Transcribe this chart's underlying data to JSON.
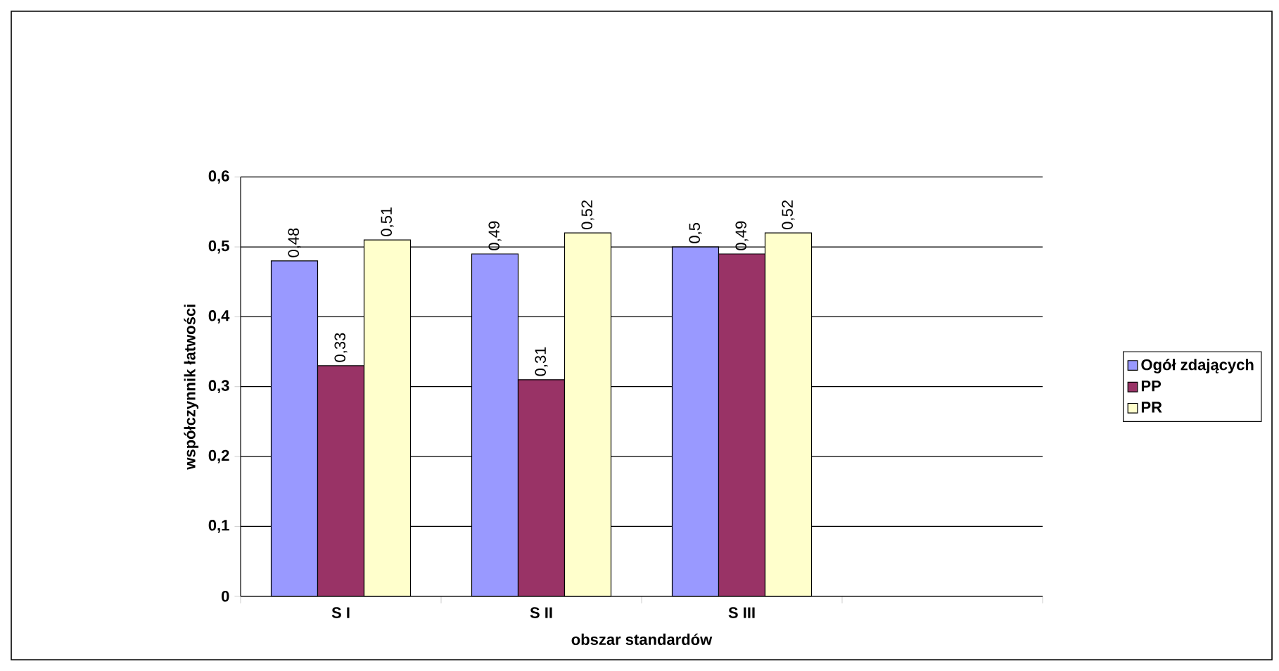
{
  "chart_data": {
    "type": "bar",
    "xlabel": "obszar standardów",
    "ylabel": "współczynnik łatwości",
    "categories": [
      "S I",
      "S II",
      "S III",
      null
    ],
    "series": [
      {
        "name": "Ogół zdających",
        "color": "#9999ff",
        "values": [
          0.48,
          0.49,
          0.5,
          null
        ],
        "value_labels": [
          "0,48",
          "0,49",
          "0,5",
          null
        ]
      },
      {
        "name": "PP",
        "color": "#993366",
        "values": [
          0.33,
          0.31,
          0.49,
          null
        ],
        "value_labels": [
          "0,33",
          "0,31",
          "0,49",
          null
        ]
      },
      {
        "name": "PR",
        "color": "#ffffcc",
        "values": [
          0.51,
          0.52,
          0.52,
          null
        ],
        "value_labels": [
          "0,51",
          "0,52",
          "0,52",
          null
        ]
      }
    ],
    "ylim": [
      0,
      0.6
    ],
    "yticks": [
      {
        "value": 0,
        "label": "0"
      },
      {
        "value": 0.1,
        "label": "0,1"
      },
      {
        "value": 0.2,
        "label": "0,2"
      },
      {
        "value": 0.3,
        "label": "0,3"
      },
      {
        "value": 0.4,
        "label": "0,4"
      },
      {
        "value": 0.5,
        "label": "0,5"
      },
      {
        "value": 0.6,
        "label": "0,6"
      }
    ],
    "grid": "y",
    "legend": "right"
  }
}
